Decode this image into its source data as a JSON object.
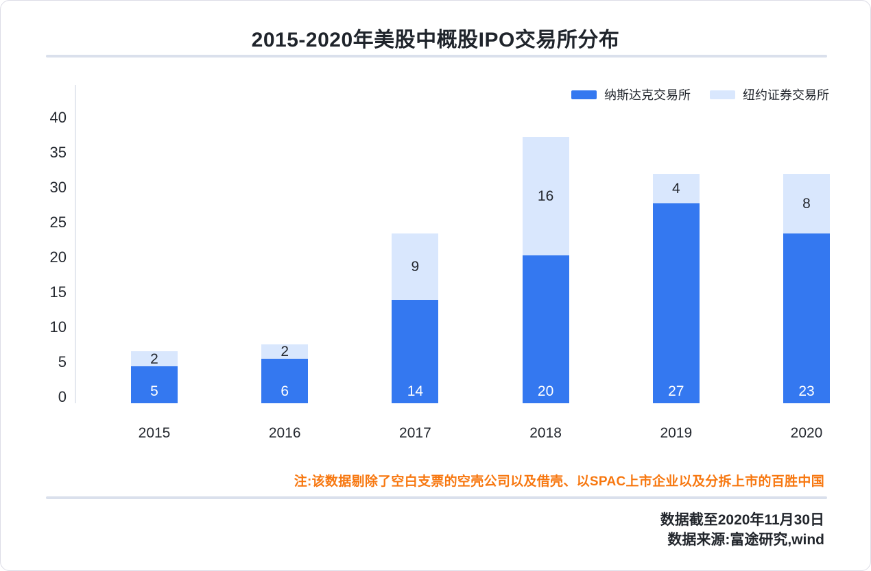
{
  "title": "2015-2020年美股中概股IPO交易所分布",
  "legend": [
    {
      "label": "纳斯达克交易所",
      "color": "#3478f0"
    },
    {
      "label": "纽约证券交易所",
      "color": "#d9e7fd"
    }
  ],
  "chart_data": {
    "type": "bar",
    "stacked": true,
    "title": "2015-2020年美股中概股IPO交易所分布",
    "categories": [
      "2015",
      "2016",
      "2017",
      "2018",
      "2019",
      "2020"
    ],
    "series": [
      {
        "name": "纳斯达克交易所",
        "color": "#3478f0",
        "label_color": "#ffffff",
        "values": [
          5,
          6,
          14,
          20,
          27,
          23
        ]
      },
      {
        "name": "纽约证券交易所",
        "color": "#d9e7fd",
        "label_color": "#23272e",
        "values": [
          2,
          2,
          9,
          16,
          4,
          8
        ]
      }
    ],
    "y_ticks": [
      0,
      5,
      10,
      15,
      20,
      25,
      30,
      35,
      40
    ],
    "ylim": [
      0,
      43
    ],
    "grid": false,
    "legend_position": "top-right",
    "xlabel": "",
    "ylabel": ""
  },
  "note": "注:该数据剔除了空白支票的空壳公司以及借壳、以SPAC上市企业以及分拆上市的百胜中国",
  "footer": {
    "line1": "数据截至2020年11月30日",
    "line2": "数据来源:富途研究,wind"
  },
  "colors": {
    "nasdaq_blue": "#3478f0",
    "nyse_light_blue": "#d9e7fd",
    "note_orange": "#f7770f",
    "text_dark": "#23272e",
    "divider": "#dae0ec"
  }
}
